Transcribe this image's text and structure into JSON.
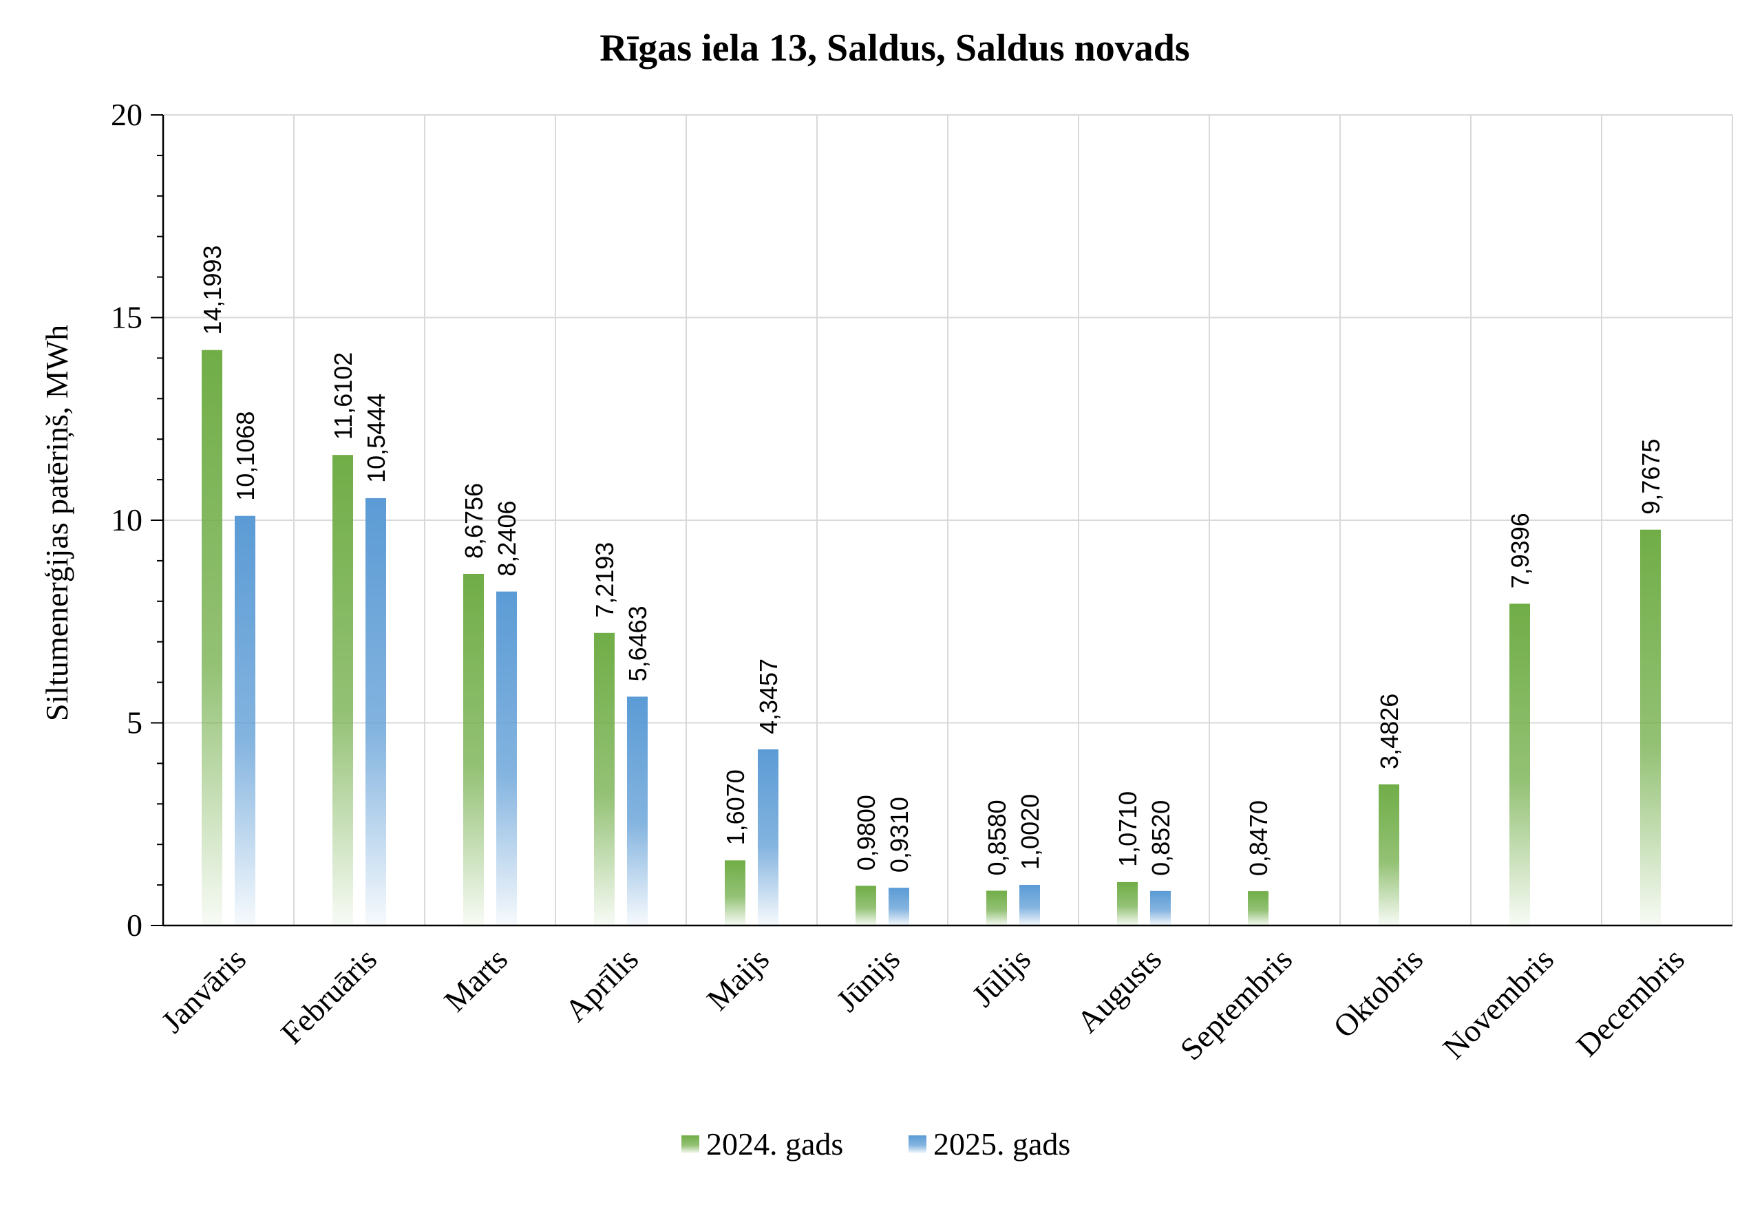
{
  "chart_data": {
    "type": "bar",
    "title": "Rīgas iela 13, Saldus, Saldus novads",
    "ylabel": "Siltumenerģijas patēriņš, MWh",
    "xlabel": "",
    "ylim": [
      0,
      20
    ],
    "yticks": [
      "0",
      "5",
      "10",
      "15",
      "20"
    ],
    "grid": true,
    "legend_position": "bottom",
    "categories": [
      "Janvāris",
      "Februāris",
      "Marts",
      "Aprīlis",
      "Maijs",
      "Jūnijs",
      "Jūlijs",
      "Augusts",
      "Septembris",
      "Oktobris",
      "Novembris",
      "Decembris"
    ],
    "series": [
      {
        "name": "2024. gads",
        "color": "#70AD47",
        "values": [
          14.1993,
          11.6102,
          8.6756,
          7.2193,
          1.607,
          0.98,
          0.858,
          1.071,
          0.847,
          3.4826,
          7.9396,
          9.7675
        ],
        "labels": [
          "14,1993",
          "11,6102",
          "8,6756",
          "7,2193",
          "1,6070",
          "0,9800",
          "0,8580",
          "1,0710",
          "0,8470",
          "3,4826",
          "7,9396",
          "9,7675"
        ]
      },
      {
        "name": "2025. gads",
        "color": "#5B9BD5",
        "values": [
          10.1068,
          10.5444,
          8.2406,
          5.6463,
          4.3457,
          0.931,
          1.002,
          0.852,
          null,
          null,
          null,
          null
        ],
        "labels": [
          "10,1068",
          "10,5444",
          "8,2406",
          "5,6463",
          "4,3457",
          "0,9310",
          "1,0020",
          "0,8520",
          null,
          null,
          null,
          null
        ]
      }
    ]
  }
}
